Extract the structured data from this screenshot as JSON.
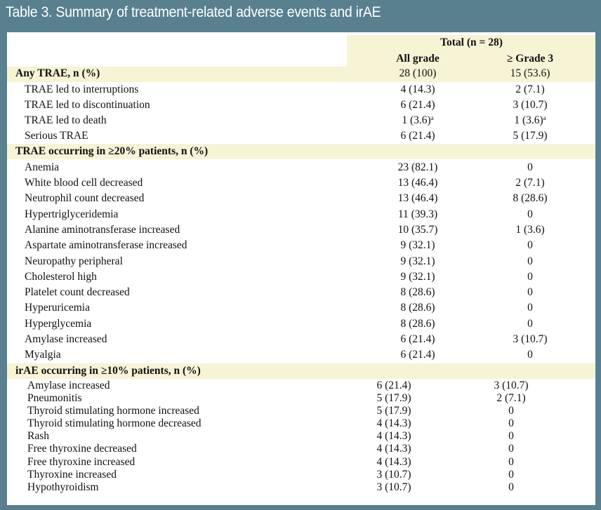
{
  "title": "Table 3. Summary of treatment-related adverse events and irAE",
  "header": {
    "total": "Total (n = 28)",
    "col_all": "All grade",
    "col_g3": "≥ Grade 3"
  },
  "sections": [
    {
      "heading": "Any TRAE, n (%)",
      "heading_all": "28 (100)",
      "heading_g3": "15 (53.6)",
      "rows": [
        {
          "label": "TRAE led to interruptions",
          "all": "4 (14.3)",
          "g3": "2 (7.1)"
        },
        {
          "label": "TRAE led to discontinuation",
          "all": "6 (21.4)",
          "g3": "3 (10.7)"
        },
        {
          "label": "TRAE led to death",
          "all": "1 (3.6)",
          "all_sup": "a",
          "g3": "1 (3.6)",
          "g3_sup": "a"
        },
        {
          "label": "Serious TRAE",
          "all": "6 (21.4)",
          "g3": "5 (17.9)"
        }
      ]
    },
    {
      "heading": "TRAE occurring in ≥20% patients, n (%)",
      "rows": [
        {
          "label": "Anemia",
          "all": "23 (82.1)",
          "g3": "0"
        },
        {
          "label": "White blood cell decreased",
          "all": "13 (46.4)",
          "g3": "2 (7.1)"
        },
        {
          "label": "Neutrophil count decreased",
          "all": "13 (46.4)",
          "g3": "8 (28.6)"
        },
        {
          "label": "Hypertriglyceridemia",
          "all": "11 (39.3)",
          "g3": "0"
        },
        {
          "label": "Alanine aminotransferase increased",
          "all": "10 (35.7)",
          "g3": "1 (3.6)"
        },
        {
          "label": "Aspartate aminotransferase increased",
          "all": "9 (32.1)",
          "g3": "0"
        },
        {
          "label": "Neuropathy peripheral",
          "all": "9 (32.1)",
          "g3": "0"
        },
        {
          "label": "Cholesterol high",
          "all": "9 (32.1)",
          "g3": "0"
        },
        {
          "label": "Platelet count decreased",
          "all": "8 (28.6)",
          "g3": "0"
        },
        {
          "label": "Hyperuricemia",
          "all": "8 (28.6)",
          "g3": "0"
        },
        {
          "label": "Hyperglycemia",
          "all": "8 (28.6)",
          "g3": "0"
        },
        {
          "label": "Amylase increased",
          "all": "6 (21.4)",
          "g3": "3 (10.7)"
        },
        {
          "label": "Myalgia",
          "all": "6 (21.4)",
          "g3": "0"
        }
      ]
    },
    {
      "heading": "irAE occurring in ≥10% patients, n (%)",
      "rows": [
        {
          "label": "Amylase increased",
          "all": "6 (21.4)",
          "g3": "3 (10.7)"
        },
        {
          "label": "Pneumonitis",
          "all": "5 (17.9)",
          "g3": "2 (7.1)"
        },
        {
          "label": "Thyroid stimulating hormone increased",
          "all": "5 (17.9)",
          "g3": "0"
        },
        {
          "label": "Thyroid stimulating hormone decreased",
          "all": "4 (14.3)",
          "g3": "0"
        },
        {
          "label": "Rash",
          "all": "4 (14.3)",
          "g3": "0"
        },
        {
          "label": "Free thyroxine decreased",
          "all": "4 (14.3)",
          "g3": "0"
        },
        {
          "label": "Free thyroxine increased",
          "all": "4 (14.3)",
          "g3": "0"
        },
        {
          "label": "Thyroxine increased",
          "all": "3 (10.7)",
          "g3": "0"
        },
        {
          "label": "Hypothyroidism",
          "all": "3 (10.7)",
          "g3": "0"
        }
      ]
    }
  ]
}
